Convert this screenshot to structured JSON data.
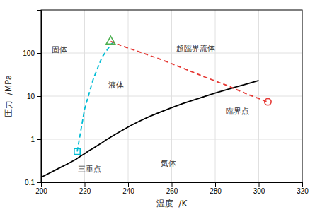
{
  "chart_data": {
    "type": "line",
    "xlabel": "温度  /K",
    "ylabel": "圧力  /MPa",
    "xlim": [
      200,
      320
    ],
    "ylim": [
      0.1,
      1000
    ],
    "xticks": [
      200,
      220,
      240,
      260,
      280,
      300,
      320
    ],
    "yticks": [
      0.1,
      1,
      10,
      100
    ],
    "log": "y",
    "grid": true,
    "series": [
      {
        "type": "line",
        "color": "#000000",
        "line_style": "solid",
        "x": [
          200,
          204,
          208,
          212,
          216,
          218,
          220,
          222,
          224,
          226,
          228,
          230,
          232,
          235,
          238,
          241,
          245,
          250,
          255,
          260,
          265,
          270,
          275,
          280,
          285,
          290,
          295,
          300
        ],
        "values": [
          0.13,
          0.165,
          0.21,
          0.265,
          0.34,
          0.4,
          0.46,
          0.54,
          0.62,
          0.72,
          0.83,
          0.97,
          1.12,
          1.38,
          1.68,
          2.05,
          2.6,
          3.4,
          4.3,
          5.4,
          6.7,
          8.1,
          9.8,
          11.8,
          14.0,
          16.5,
          19.5,
          23.0
        ]
      },
      {
        "type": "line",
        "color": "#00bcd4",
        "line_style": "dashed",
        "x": [
          216.6,
          220,
          224,
          228,
          232,
          233.5
        ],
        "values": [
          0.52,
          5.0,
          25,
          80,
          155,
          185
        ]
      },
      {
        "type": "line",
        "color": "#e53935",
        "line_style": "dashed",
        "x": [
          232,
          240,
          248,
          256,
          265,
          275,
          285,
          295,
          304
        ],
        "values": [
          185,
          130,
          95,
          68,
          45,
          28,
          18,
          11,
          7.38
        ]
      },
      {
        "type": "scatter",
        "color": "#00bcd4",
        "marker": "square",
        "x": [
          216.6
        ],
        "values": [
          0.52
        ]
      },
      {
        "type": "scatter",
        "color": "#e53935",
        "marker": "circle",
        "x": [
          304.2
        ],
        "values": [
          7.38
        ]
      },
      {
        "type": "scatter",
        "color": "#4caf50",
        "marker": "triangle",
        "x": [
          232
        ],
        "values": [
          185
        ]
      }
    ],
    "annotations": [
      {
        "text": "固体",
        "x": 205,
        "y": 120
      },
      {
        "text": "液体",
        "x": 231,
        "y": 18
      },
      {
        "text": "気体",
        "x": 255,
        "y": 0.28
      },
      {
        "text": "三重点",
        "x": 217,
        "y": 0.2
      },
      {
        "text": "臨界点",
        "x": 285,
        "y": 4.5
      },
      {
        "text": "超臨界流体",
        "x": 262,
        "y": 130
      }
    ]
  }
}
